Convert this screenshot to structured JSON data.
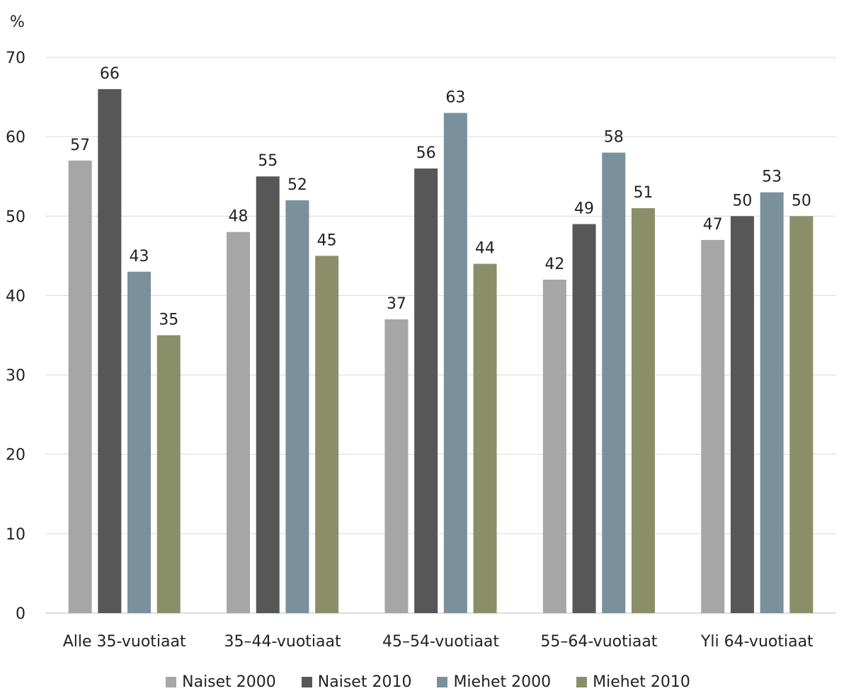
{
  "chart_data": {
    "type": "bar",
    "ylabel": "%",
    "ylim": [
      0,
      70
    ],
    "yticks": [
      0,
      10,
      20,
      30,
      40,
      50,
      60,
      70
    ],
    "grid": true,
    "legend_position": "bottom",
    "categories": [
      "Alle 35-vuotiaat",
      "35–44-vuotiaat",
      "45–54-vuotiaat",
      "55–64-vuotiaat",
      "Yli 64-vuotiaat"
    ],
    "series": [
      {
        "name": "Naiset 2000",
        "color": "#a6a6a6",
        "values": [
          57,
          48,
          37,
          42,
          47
        ]
      },
      {
        "name": "Naiset 2010",
        "color": "#575757",
        "values": [
          66,
          55,
          56,
          49,
          50
        ]
      },
      {
        "name": "Miehet 2000",
        "color": "#7a909d",
        "values": [
          43,
          52,
          63,
          58,
          53
        ]
      },
      {
        "name": "Miehet 2010",
        "color": "#8a8f6a",
        "values": [
          35,
          45,
          44,
          51,
          50
        ]
      }
    ]
  }
}
